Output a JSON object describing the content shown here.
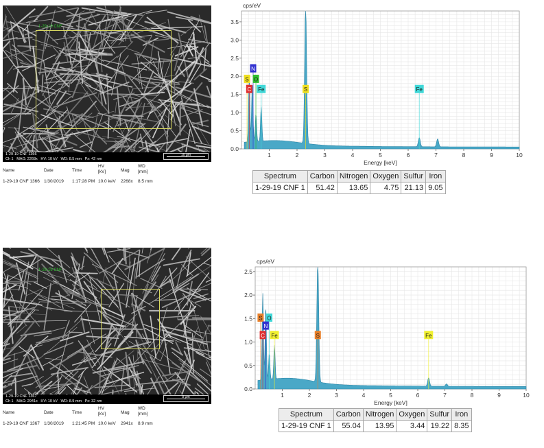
{
  "colors": {
    "spectrum": "#4aa8c7",
    "grid": "#e6e6e6",
    "S": "#f0e020",
    "N": "#3030d0",
    "O": "#30c030",
    "C": "#e03030",
    "Fe": "#40d8d8",
    "S_alt": "#e8802a",
    "O_alt": "#40d8d8",
    "Fe_alt": "#f0f030"
  },
  "table_headers": [
    "Spectrum",
    "Carbon",
    "Nitrogen",
    "Oxygen",
    "Sulfur",
    "Iron"
  ],
  "meta_headers": {
    "name": "Name",
    "date": "Date",
    "time": "Time",
    "hv": "HV",
    "hv_unit": "[kV]",
    "mag": "Mag",
    "wd": "WD",
    "wd_unit": "[mm]"
  },
  "panels": [
    {
      "sem": {
        "title_line": "1-29-19 CNF 1366",
        "info_line": "Ch 1   MAG: 2268x   HV: 10 kV   WD: 8.5 mm   Px: 42 nm",
        "scale_label": "10 μm",
        "overlay_label": "1-29-19 CNF"
      },
      "meta": {
        "name": "1-29-19 CNF 1366",
        "date": "1/30/2019",
        "time": "1:17:28 PM",
        "hv": "10.0 keV",
        "mag": "2268x",
        "wd": "8.5 mm"
      },
      "table": {
        "spectrum": "1-29-19 CNF 1",
        "carbon": "51.42",
        "nitrogen": "13.65",
        "oxygen": "4.75",
        "sulfur": "21.13",
        "iron": "9.05"
      },
      "chart_data": {
        "type": "line",
        "ylabel": "cps/eV",
        "xlabel": "Energy [keV]",
        "xlim": [
          0,
          10
        ],
        "ylim": [
          0,
          3.8
        ],
        "xticks": [
          "1",
          "2",
          "3",
          "4",
          "5",
          "6",
          "7",
          "8",
          "9",
          "10"
        ],
        "yticks": [
          "0.0",
          "0.5",
          "1.0",
          "1.5",
          "2.0",
          "2.5",
          "3.0",
          "3.5"
        ],
        "ytick_values": [
          0,
          0.5,
          1.0,
          1.5,
          2.0,
          2.5,
          3.0,
          3.5
        ],
        "grid": true,
        "peaks": [
          {
            "x": 0.28,
            "y": 1.78
          },
          {
            "x": 0.39,
            "y": 1.62
          },
          {
            "x": 0.52,
            "y": 0.75
          },
          {
            "x": 0.71,
            "y": 0.95
          },
          {
            "x": 2.31,
            "y": 3.78
          },
          {
            "x": 6.4,
            "y": 0.25
          },
          {
            "x": 7.06,
            "y": 0.22
          }
        ],
        "labels": [
          {
            "text": "N",
            "x": 0.42,
            "y": 2.22,
            "color": "N"
          },
          {
            "text": "S",
            "x": 0.2,
            "y": 1.93,
            "color": "S"
          },
          {
            "text": "O",
            "x": 0.52,
            "y": 1.93,
            "color": "O"
          },
          {
            "text": "C",
            "x": 0.28,
            "y": 1.65,
            "color": "C"
          },
          {
            "text": "Fe",
            "x": 0.71,
            "y": 1.65,
            "color": "Fe"
          },
          {
            "text": "S",
            "x": 2.31,
            "y": 1.65,
            "color": "S"
          },
          {
            "text": "Fe",
            "x": 6.4,
            "y": 1.65,
            "color": "Fe"
          }
        ]
      }
    },
    {
      "sem": {
        "title_line": "1-29-19 CNF 1367",
        "info_line": "Ch 1   MAG: 2941x   HV: 10 kV   WD: 8.9 mm   Px: 32 nm",
        "scale_label": "8 μm",
        "overlay_label": "1-29-19 CNF"
      },
      "meta": {
        "name": "1-29-19 CNF 1367",
        "date": "1/30/2019",
        "time": "1:21:45 PM",
        "hv": "10.0 keV",
        "mag": "2941x",
        "wd": "8.9 mm"
      },
      "table": {
        "spectrum": "1-29-19 CNF 1",
        "carbon": "55.04",
        "nitrogen": "13.95",
        "oxygen": "3.44",
        "sulfur": "19.22",
        "iron": "8.35"
      },
      "chart_data": {
        "type": "line",
        "ylabel": "cps/eV",
        "xlabel": "Energy [keV]",
        "xlim": [
          0,
          10
        ],
        "ylim": [
          0,
          2.6
        ],
        "xticks": [
          "1",
          "2",
          "3",
          "4",
          "5",
          "6",
          "7",
          "8",
          "9",
          "10"
        ],
        "yticks": [
          "0.0",
          "0.5",
          "1.0",
          "1.5",
          "2.0",
          "2.5"
        ],
        "ytick_values": [
          0,
          0.5,
          1.0,
          1.5,
          2.0,
          2.5
        ],
        "grid": true,
        "peaks": [
          {
            "x": 0.28,
            "y": 1.85
          },
          {
            "x": 0.39,
            "y": 1.55
          },
          {
            "x": 0.52,
            "y": 0.55
          },
          {
            "x": 0.71,
            "y": 0.72
          },
          {
            "x": 2.31,
            "y": 2.6
          },
          {
            "x": 6.4,
            "y": 0.18
          },
          {
            "x": 7.06,
            "y": 0.05
          }
        ],
        "labels": [
          {
            "text": "S",
            "x": 0.2,
            "y": 1.52,
            "color": "S_alt"
          },
          {
            "text": "O",
            "x": 0.52,
            "y": 1.52,
            "color": "O_alt"
          },
          {
            "text": "N",
            "x": 0.39,
            "y": 1.35,
            "color": "N"
          },
          {
            "text": "C",
            "x": 0.28,
            "y": 1.15,
            "color": "C"
          },
          {
            "text": "Fe",
            "x": 0.71,
            "y": 1.15,
            "color": "Fe_alt"
          },
          {
            "text": "S",
            "x": 2.31,
            "y": 1.15,
            "color": "S_alt"
          },
          {
            "text": "Fe",
            "x": 6.4,
            "y": 1.15,
            "color": "Fe_alt"
          }
        ]
      }
    }
  ]
}
